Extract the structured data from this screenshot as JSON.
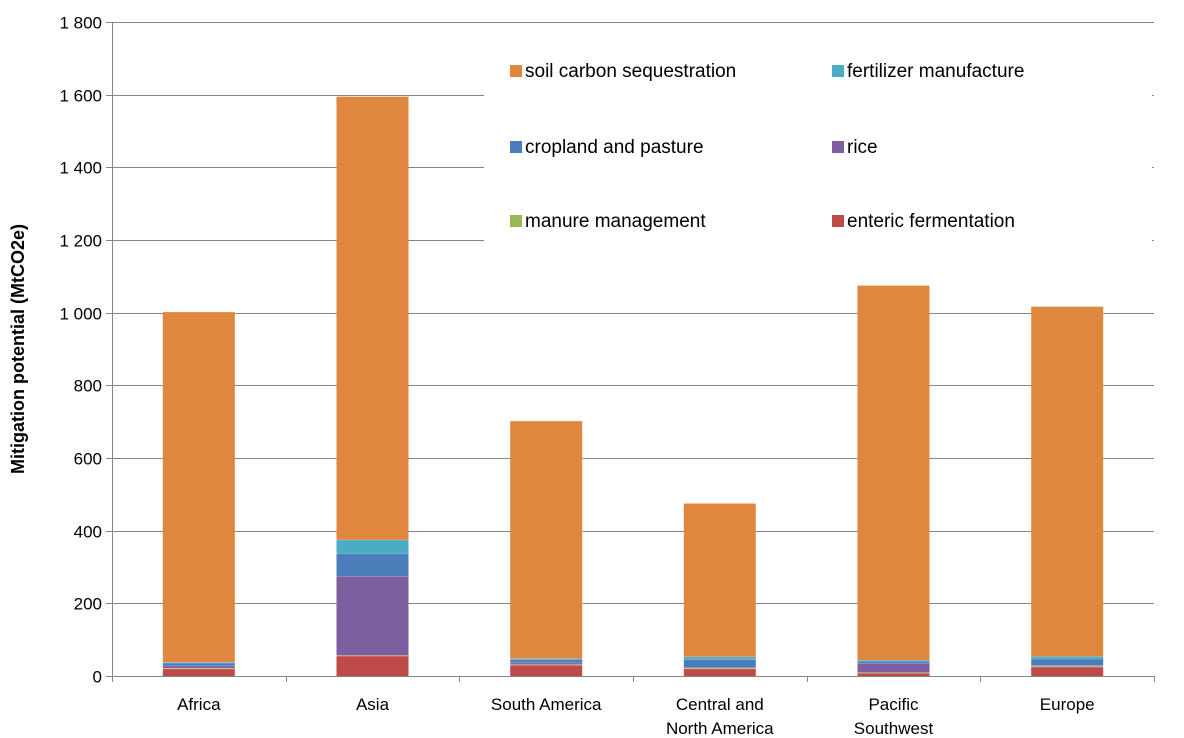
{
  "chart_data": {
    "type": "bar",
    "stacked": true,
    "categories": [
      [
        "Africa"
      ],
      [
        "Asia"
      ],
      [
        "South America"
      ],
      [
        "Central and",
        "North America"
      ],
      [
        "Pacific",
        "Southwest"
      ],
      [
        "Europe"
      ]
    ],
    "ylabel": "Mitigation potential (MtCO2e)",
    "ylim": [
      0,
      1800
    ],
    "yticks": [
      0,
      200,
      400,
      600,
      800,
      1000,
      1200,
      1400,
      1600,
      1800
    ],
    "ytick_labels": [
      "0",
      "200",
      "400",
      "600",
      "800",
      "1 000",
      "1 200",
      "1 400",
      "1 600",
      "1 800"
    ],
    "grid": true,
    "legend_position": "top-right",
    "series": [
      {
        "name": "enteric fermentation",
        "color": "#BE4B48",
        "values": [
          20,
          55,
          30,
          20,
          8,
          25
        ]
      },
      {
        "name": "manure management",
        "color": "#98B954",
        "values": [
          2,
          2,
          2,
          2,
          2,
          2
        ]
      },
      {
        "name": "rice",
        "color": "#7D5FA0",
        "values": [
          6,
          218,
          5,
          2,
          25,
          2
        ]
      },
      {
        "name": "cropland and pasture",
        "color": "#4A7EBB",
        "values": [
          8,
          62,
          8,
          22,
          6,
          18
        ]
      },
      {
        "name": "fertilizer manufacture",
        "color": "#4BACC6",
        "values": [
          2,
          38,
          3,
          7,
          3,
          7
        ]
      },
      {
        "name": "soil carbon sequestration",
        "color": "#E0873F",
        "values": [
          964,
          1220,
          654,
          422,
          1031,
          963
        ]
      }
    ],
    "legend_order": [
      "soil carbon sequestration",
      "fertilizer manufacture",
      "cropland and pasture",
      "rice",
      "manure management",
      "enteric fermentation"
    ]
  }
}
